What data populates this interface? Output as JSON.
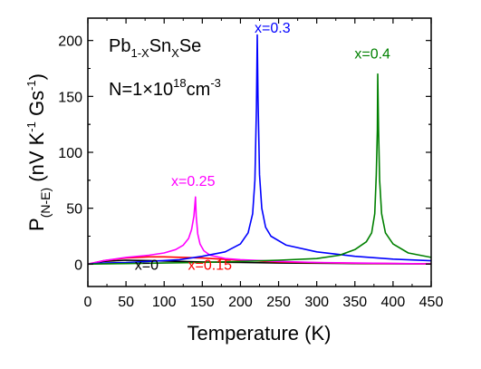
{
  "chart_data": {
    "type": "line",
    "xlabel": "Temperature (K)",
    "ylabel": {
      "base": "P",
      "sub": "(N-E)",
      "mid": " (nV K",
      "exp1": "-1",
      "mid2": " Gs",
      "exp2": "-1",
      "end": ")"
    },
    "xlim": [
      0,
      450
    ],
    "ylim": [
      -20,
      220
    ],
    "xticks": [
      "0",
      "50",
      "100",
      "150",
      "200",
      "250",
      "300",
      "350",
      "400",
      "450"
    ],
    "yticks": [
      "0",
      "50",
      "100",
      "150",
      "200"
    ],
    "x_tick_values": [
      0,
      50,
      100,
      150,
      200,
      250,
      300,
      350,
      400,
      450
    ],
    "y_tick_values": [
      0,
      50,
      100,
      150,
      200
    ],
    "annotations": {
      "formula": {
        "p1": "Pb",
        "s1": "1-X",
        "p2": "Sn",
        "s2": "X",
        "p3": "Se"
      },
      "density": {
        "p1": "N=1×10",
        "sup": "18",
        "p2": "cm",
        "sup2": "-3"
      }
    },
    "series": [
      {
        "name": "x=0",
        "color": "#000000",
        "points": [
          [
            0,
            0
          ],
          [
            20,
            2.5
          ],
          [
            50,
            3.5
          ],
          [
            80,
            3.2
          ],
          [
            120,
            2.5
          ],
          [
            150,
            2
          ],
          [
            200,
            1.5
          ],
          [
            250,
            1
          ],
          [
            300,
            0.8
          ],
          [
            350,
            0.5
          ],
          [
            400,
            0.3
          ],
          [
            450,
            0.2
          ]
        ]
      },
      {
        "name": "x=0.15",
        "color": "#ff0000",
        "points": [
          [
            0,
            0
          ],
          [
            20,
            3
          ],
          [
            50,
            5.5
          ],
          [
            80,
            6.5
          ],
          [
            100,
            6.5
          ],
          [
            150,
            5.5
          ],
          [
            200,
            3.5
          ],
          [
            250,
            2
          ],
          [
            300,
            1.3
          ],
          [
            350,
            0.8
          ],
          [
            400,
            0.5
          ],
          [
            450,
            0.3
          ]
        ]
      },
      {
        "name": "x=0.25",
        "color": "#ff00ff",
        "points": [
          [
            0,
            0
          ],
          [
            20,
            3
          ],
          [
            50,
            6
          ],
          [
            80,
            8
          ],
          [
            100,
            10
          ],
          [
            115,
            13
          ],
          [
            125,
            17
          ],
          [
            132,
            23
          ],
          [
            136,
            31
          ],
          [
            139,
            43
          ],
          [
            141,
            60
          ],
          [
            142,
            43
          ],
          [
            144,
            27
          ],
          [
            147,
            18
          ],
          [
            152,
            12
          ],
          [
            160,
            8
          ],
          [
            180,
            5
          ],
          [
            200,
            4
          ],
          [
            250,
            2.5
          ],
          [
            300,
            1.5
          ],
          [
            350,
            1
          ],
          [
            400,
            0.6
          ],
          [
            450,
            0.3
          ]
        ]
      },
      {
        "name": "x=0.3",
        "color": "#0000ff",
        "points": [
          [
            0,
            0
          ],
          [
            20,
            1
          ],
          [
            50,
            1.5
          ],
          [
            80,
            2.5
          ],
          [
            120,
            4
          ],
          [
            150,
            7
          ],
          [
            180,
            11
          ],
          [
            200,
            18
          ],
          [
            210,
            28
          ],
          [
            216,
            45
          ],
          [
            219,
            75
          ],
          [
            221,
            140
          ],
          [
            222,
            205
          ],
          [
            223,
            150
          ],
          [
            225,
            80
          ],
          [
            228,
            50
          ],
          [
            233,
            33
          ],
          [
            240,
            25
          ],
          [
            260,
            17
          ],
          [
            300,
            11
          ],
          [
            350,
            7
          ],
          [
            400,
            4.5
          ],
          [
            450,
            3
          ]
        ]
      },
      {
        "name": "x=0.4",
        "color": "#008000",
        "points": [
          [
            0,
            0
          ],
          [
            50,
            0.5
          ],
          [
            100,
            1
          ],
          [
            150,
            1.5
          ],
          [
            200,
            2.5
          ],
          [
            250,
            3.5
          ],
          [
            300,
            5
          ],
          [
            330,
            8
          ],
          [
            350,
            13
          ],
          [
            365,
            20
          ],
          [
            372,
            28
          ],
          [
            376,
            45
          ],
          [
            378,
            80
          ],
          [
            379.5,
            120
          ],
          [
            380,
            170
          ],
          [
            381,
            120
          ],
          [
            382.5,
            75
          ],
          [
            385,
            45
          ],
          [
            390,
            28
          ],
          [
            400,
            18
          ],
          [
            420,
            10
          ],
          [
            450,
            6
          ]
        ]
      }
    ],
    "series_labels": [
      {
        "series": "x=0",
        "x": 77,
        "y": -5,
        "color": "#000000"
      },
      {
        "series": "x=0.15",
        "x": 160,
        "y": -5,
        "color": "#ff0000"
      },
      {
        "series": "x=0.25",
        "x": 138,
        "y": 70,
        "color": "#ff00ff"
      },
      {
        "series": "x=0.3",
        "x": 242,
        "y": 207,
        "color": "#0000ff"
      },
      {
        "series": "x=0.4",
        "x": 373,
        "y": 184,
        "color": "#008000"
      }
    ]
  }
}
